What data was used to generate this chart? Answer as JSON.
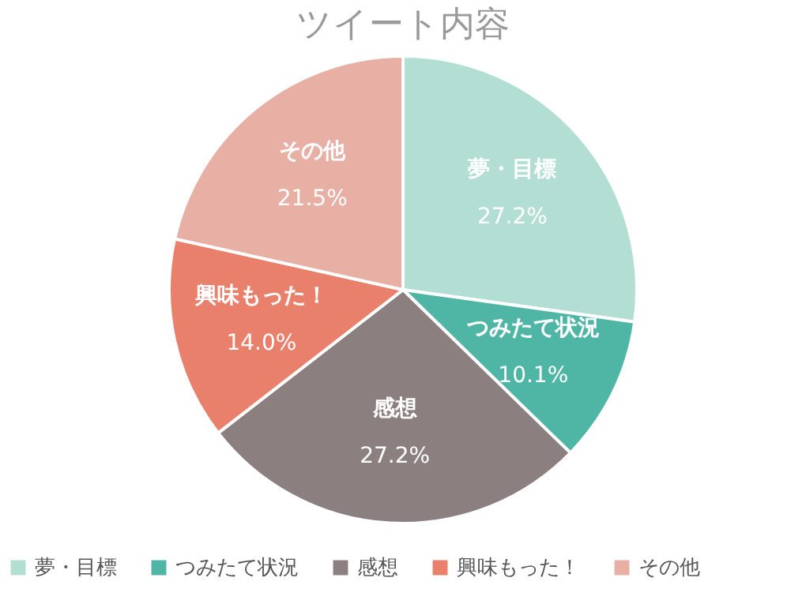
{
  "chart_data": {
    "type": "pie",
    "title": "ツイート内容",
    "categories": [
      "夢・目標",
      "つみたて状況",
      "感想",
      "興味もった！",
      "その他"
    ],
    "values": [
      27.2,
      10.1,
      27.2,
      14.0,
      21.5
    ],
    "colors": [
      "#b3ded4",
      "#4fb5a5",
      "#8c7f80",
      "#e8806c",
      "#e8afa5"
    ],
    "value_labels": [
      "27.2%",
      "10.1%",
      "27.2%",
      "14.0%",
      "21.5%"
    ],
    "legend": "bottom"
  }
}
